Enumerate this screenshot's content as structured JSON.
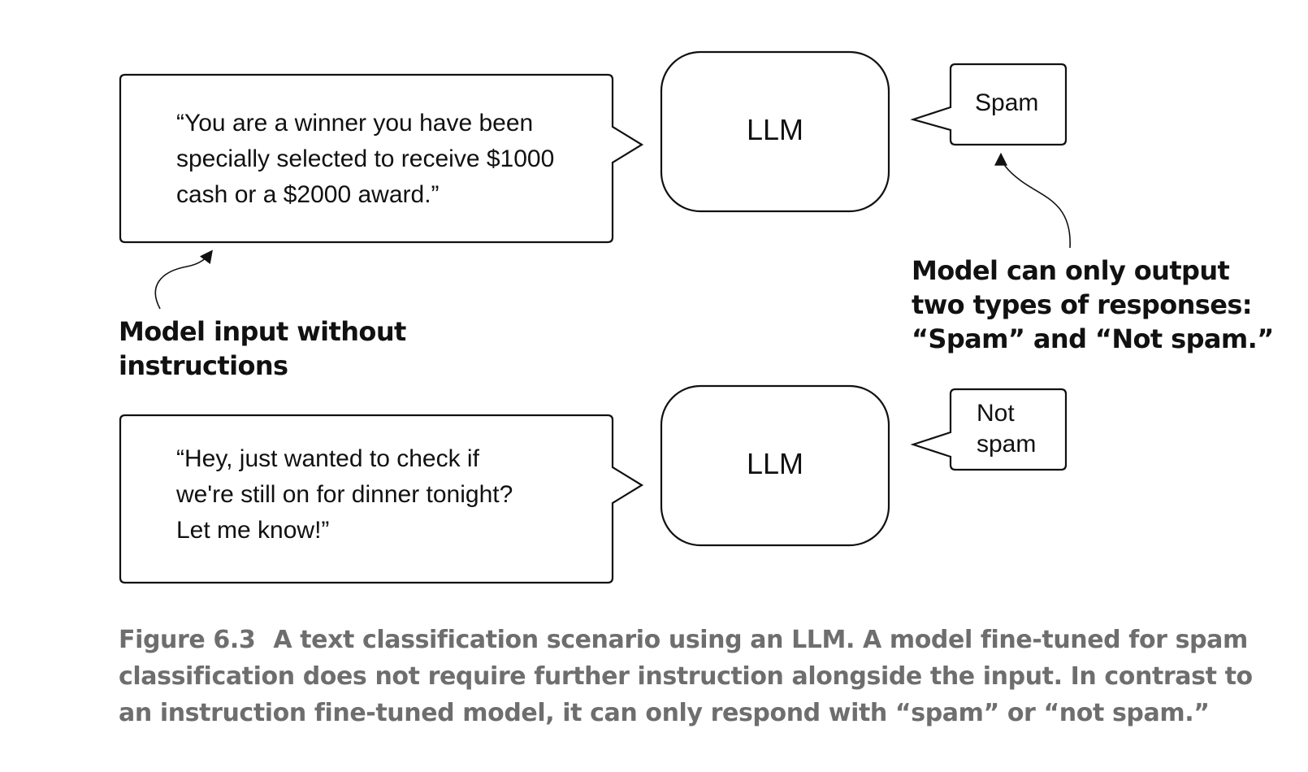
{
  "diagram": {
    "top_row": {
      "input_message": {
        "lines": [
          "“You are a winner you have been",
          "specially selected to receive $1000",
          "cash or a $2000 award.”"
        ]
      },
      "model_label": "LLM",
      "output": {
        "lines": [
          "Spam"
        ]
      }
    },
    "bottom_row": {
      "input_message": {
        "lines": [
          "“Hey, just wanted to check if",
          "we're still on for dinner tonight?",
          "Let me know!”"
        ]
      },
      "model_label": "LLM",
      "output": {
        "lines": [
          "Not",
          "spam"
        ]
      }
    },
    "annotations": {
      "input_note": {
        "lines": [
          "Model input without",
          "instructions"
        ]
      },
      "output_note": {
        "lines": [
          "Model can only output",
          "two types of responses:",
          "“Spam” and “Not spam.”"
        ]
      }
    }
  },
  "caption": {
    "label": "Figure 6.3",
    "lines": [
      "A text classification scenario using an LLM. A model fine-tuned for spam",
      "classification does not require further instruction alongside the input. In contrast to",
      "an instruction fine-tuned model, it can only respond with “spam” or “not spam.”"
    ]
  }
}
